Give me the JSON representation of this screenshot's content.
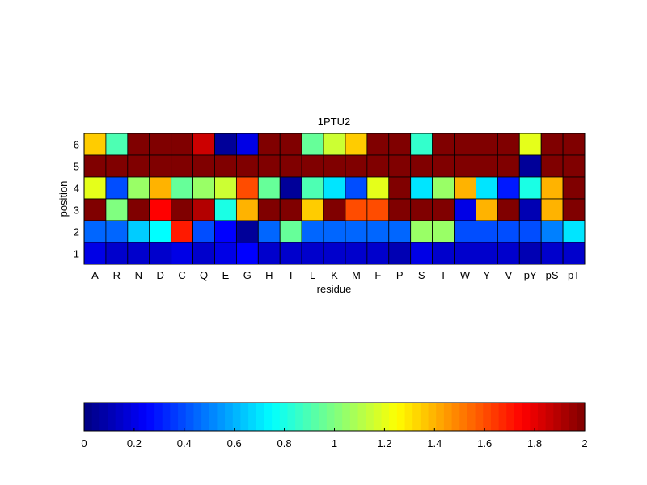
{
  "chart_data": [
    {
      "type": "heatmap",
      "title": "1PTU2",
      "xlabel": "residue",
      "ylabel": "position",
      "x_categories": [
        "A",
        "R",
        "N",
        "D",
        "C",
        "Q",
        "E",
        "G",
        "H",
        "I",
        "L",
        "K",
        "M",
        "F",
        "P",
        "S",
        "T",
        "W",
        "Y",
        "V",
        "pY",
        "pS",
        "pT"
      ],
      "y_categories": [
        "6",
        "5",
        "4",
        "3",
        "2",
        "1"
      ],
      "colormap": "jet",
      "value_range": [
        0,
        2
      ],
      "values": [
        [
          1.35,
          0.9,
          2.0,
          2.0,
          2.0,
          1.85,
          0.05,
          0.2,
          2.0,
          2.0,
          0.95,
          1.15,
          1.35,
          2.0,
          2.0,
          0.85,
          2.0,
          2.0,
          2.0,
          2.0,
          1.2,
          2.0,
          2.0
        ],
        [
          2.0,
          2.0,
          2.0,
          2.0,
          2.0,
          2.0,
          2.0,
          2.0,
          2.0,
          2.0,
          2.0,
          2.0,
          2.0,
          2.0,
          2.0,
          2.0,
          2.0,
          2.0,
          2.0,
          2.0,
          0.05,
          2.0,
          2.0
        ],
        [
          1.2,
          0.4,
          1.05,
          1.4,
          0.95,
          1.05,
          1.15,
          1.6,
          0.95,
          0.05,
          0.9,
          0.7,
          0.4,
          1.2,
          2.0,
          0.7,
          1.05,
          1.4,
          0.7,
          0.3,
          0.8,
          1.4,
          2.0
        ],
        [
          2.0,
          1.0,
          2.0,
          1.75,
          2.0,
          1.9,
          0.8,
          1.4,
          2.0,
          2.0,
          1.35,
          2.0,
          1.6,
          1.6,
          2.0,
          2.0,
          2.0,
          0.2,
          1.4,
          2.0,
          0.1,
          1.4,
          2.0
        ],
        [
          0.45,
          0.45,
          0.65,
          0.75,
          1.7,
          0.4,
          0.25,
          0.05,
          0.45,
          0.95,
          0.45,
          0.45,
          0.45,
          0.45,
          0.45,
          1.05,
          1.05,
          0.4,
          0.4,
          0.4,
          0.4,
          0.5,
          0.7
        ],
        [
          0.2,
          0.15,
          0.15,
          0.15,
          0.2,
          0.15,
          0.2,
          0.25,
          0.15,
          0.15,
          0.15,
          0.15,
          0.15,
          0.15,
          0.1,
          0.2,
          0.15,
          0.15,
          0.15,
          0.15,
          0.1,
          0.15,
          0.15
        ]
      ]
    },
    {
      "type": "colorbar",
      "colormap": "jet",
      "range": [
        0,
        2
      ],
      "tick_labels": [
        "0",
        "0.2",
        "0.4",
        "0.6",
        "0.8",
        "1",
        "1.2",
        "1.4",
        "1.6",
        "1.8",
        "2"
      ]
    }
  ]
}
